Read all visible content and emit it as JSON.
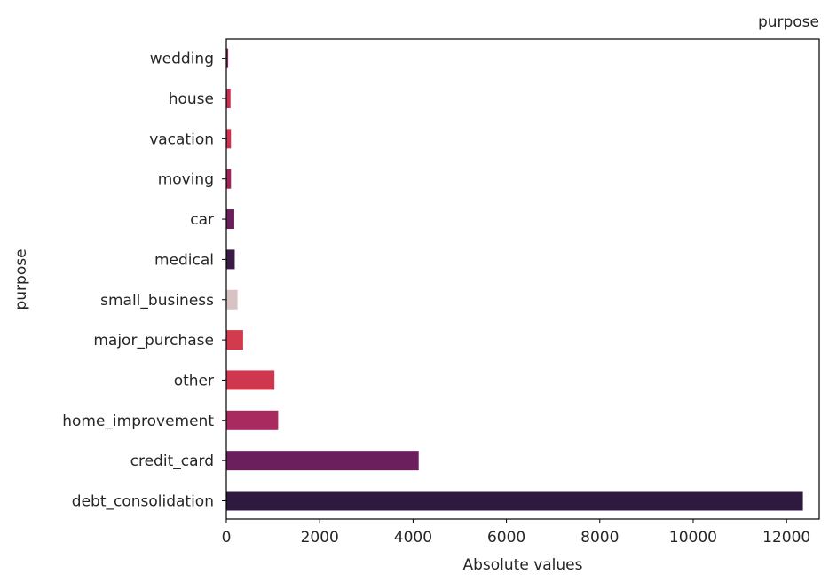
{
  "chart_data": {
    "type": "bar",
    "orientation": "horizontal",
    "title": "purpose",
    "xlabel": "Absolute values",
    "ylabel": "purpose",
    "categories": [
      "debt_consolidation",
      "credit_card",
      "home_improvement",
      "other",
      "major_purchase",
      "small_business",
      "medical",
      "car",
      "moving",
      "vacation",
      "house",
      "wedding"
    ],
    "values": [
      12350,
      4120,
      1110,
      1030,
      360,
      240,
      180,
      170,
      100,
      100,
      90,
      40
    ],
    "colors": [
      "#2d1a3e",
      "#6b1f5c",
      "#a82a5e",
      "#d0374f",
      "#d23a4d",
      "#d9c2c4",
      "#3a1b45",
      "#6a1e5b",
      "#a12459",
      "#cc3551",
      "#c8304f",
      "#8c2560"
    ],
    "xlim": [
      0,
      12700
    ],
    "xticks": [
      0,
      2000,
      4000,
      6000,
      8000,
      10000,
      12000
    ],
    "grid": false
  }
}
